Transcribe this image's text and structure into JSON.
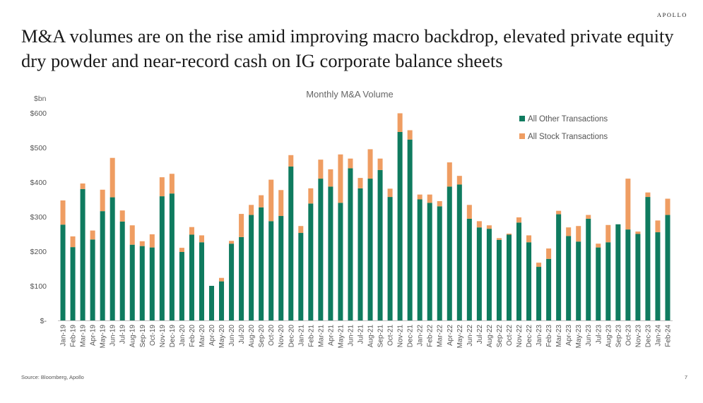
{
  "brand": "APOLLO",
  "headline": "M&A volumes are on the rise amid improving macro backdrop, elevated private equity dry powder and near-record cash on IG corporate balance sheets",
  "footer": {
    "source": "Source: Bloomberg, Apollo",
    "page_number": "7"
  },
  "chart_data": {
    "type": "bar",
    "stacked": true,
    "title": "Monthly M&A Volume",
    "ylabel": "$bn",
    "ylim": [
      0,
      600
    ],
    "yticks": [
      0,
      100,
      200,
      300,
      400,
      500,
      600
    ],
    "ytick_labels": [
      "$-",
      "$100",
      "$200",
      "$300",
      "$400",
      "$500",
      "$600"
    ],
    "legend_position": "top-right",
    "categories": [
      "Jan-19",
      "Feb-19",
      "Mar-19",
      "Apr-19",
      "May-19",
      "Jun-19",
      "Jul-19",
      "Aug-19",
      "Sep-19",
      "Oct-19",
      "Nov-19",
      "Dec-19",
      "Jan-20",
      "Feb-20",
      "Mar-20",
      "Apr-20",
      "May-20",
      "Jun-20",
      "Jul-20",
      "Aug-20",
      "Sep-20",
      "Oct-20",
      "Nov-20",
      "Dec-20",
      "Jan-21",
      "Feb-21",
      "Mar-21",
      "Apr-21",
      "May-21",
      "Jun-21",
      "Jul-21",
      "Aug-21",
      "Sep-21",
      "Oct-21",
      "Nov-21",
      "Dec-21",
      "Jan-22",
      "Feb-22",
      "Mar-22",
      "Apr-22",
      "May-22",
      "Jun-22",
      "Jul-22",
      "Aug-22",
      "Sep-22",
      "Oct-22",
      "Nov-22",
      "Dec-22",
      "Jan-23",
      "Feb-23",
      "Mar-23",
      "Apr-23",
      "May-23",
      "Jun-23",
      "Jul-23",
      "Aug-23",
      "Sep-23",
      "Oct-23",
      "Nov-23",
      "Dec-23",
      "Jan-24",
      "Feb-24"
    ],
    "series": [
      {
        "name": "All Other Transactions",
        "color": "#0f7b5f",
        "values": [
          277,
          212,
          380,
          234,
          316,
          356,
          286,
          219,
          215,
          211,
          359,
          367,
          198,
          248,
          226,
          100,
          113,
          222,
          241,
          305,
          327,
          287,
          302,
          445,
          253,
          338,
          410,
          387,
          340,
          440,
          382,
          410,
          435,
          357,
          545,
          523,
          350,
          340,
          330,
          387,
          393,
          294,
          269,
          265,
          233,
          248,
          283,
          226,
          155,
          178,
          307,
          244,
          228,
          294,
          211,
          226,
          278,
          263,
          250,
          357,
          255,
          305
        ]
      },
      {
        "name": "All Stock Transactions",
        "color": "#ef9d62",
        "values": [
          70,
          31,
          16,
          26,
          62,
          114,
          32,
          56,
          14,
          38,
          55,
          57,
          12,
          22,
          20,
          0,
          10,
          8,
          67,
          29,
          35,
          120,
          75,
          33,
          20,
          44,
          55,
          50,
          140,
          28,
          30,
          85,
          33,
          24,
          54,
          27,
          14,
          24,
          15,
          70,
          25,
          40,
          18,
          10,
          5,
          3,
          15,
          20,
          12,
          30,
          10,
          25,
          45,
          11,
          11,
          50,
          0,
          147,
          7,
          13,
          34,
          47
        ]
      }
    ]
  }
}
